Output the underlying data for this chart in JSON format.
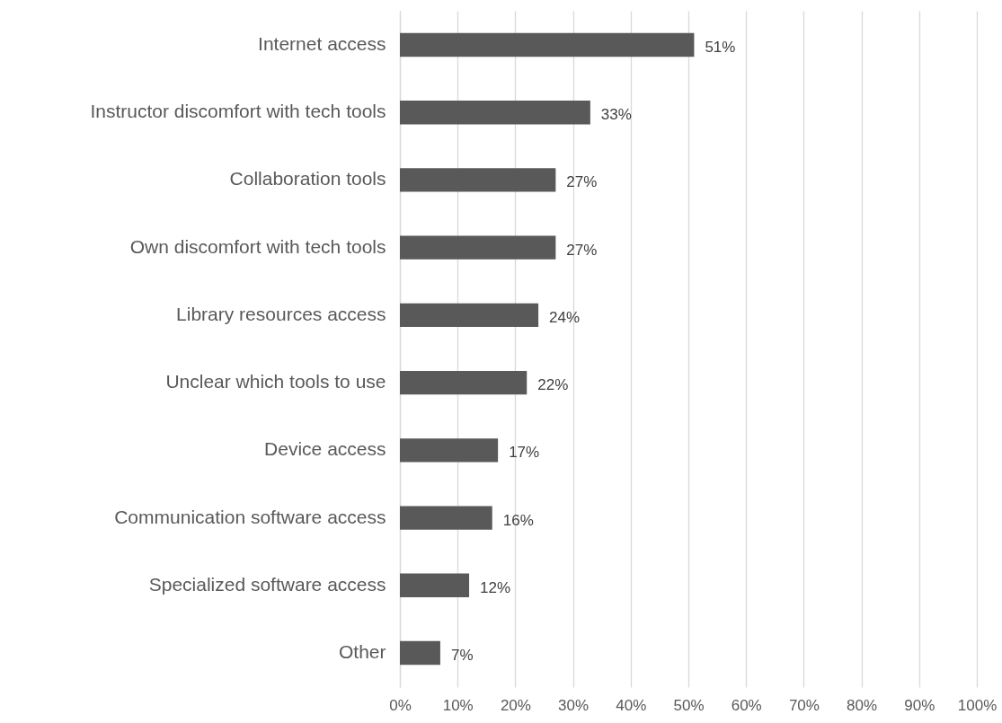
{
  "chart_data": {
    "type": "bar",
    "orientation": "horizontal",
    "categories": [
      "Internet access",
      "Instructor discomfort with tech tools",
      "Collaboration tools",
      "Own discomfort with tech tools",
      "Library resources access",
      "Unclear which tools to use",
      "Device access",
      "Communication software access",
      "Specialized software access",
      "Other"
    ],
    "values": [
      51,
      33,
      27,
      27,
      24,
      22,
      17,
      16,
      12,
      7
    ],
    "value_labels": [
      "51%",
      "33%",
      "27%",
      "27%",
      "24%",
      "22%",
      "17%",
      "16%",
      "12%",
      "7%"
    ],
    "color": "#595959",
    "xlim": [
      0,
      100
    ],
    "xticks": [
      {
        "value": 0,
        "label": "0%"
      },
      {
        "value": 10,
        "label": "10%"
      },
      {
        "value": 20,
        "label": "20%"
      },
      {
        "value": 30,
        "label": "30%"
      },
      {
        "value": 40,
        "label": "40%"
      },
      {
        "value": 50,
        "label": "50%"
      },
      {
        "value": 60,
        "label": "60%"
      },
      {
        "value": 70,
        "label": "70%"
      },
      {
        "value": 80,
        "label": "80%"
      },
      {
        "value": 90,
        "label": "90%"
      },
      {
        "value": 100,
        "label": "100%"
      }
    ],
    "grid": "x"
  }
}
